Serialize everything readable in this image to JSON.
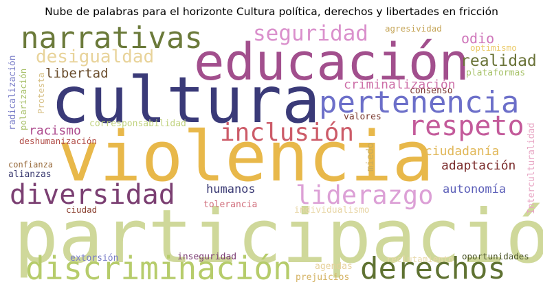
{
  "title": "Nube de palabras para el horizonte Cultura política, derechos y libertades en fricción",
  "words": [
    {
      "text": "participación",
      "color": "#cfd89a"
    },
    {
      "text": "violencia",
      "color": "#e8b84a"
    },
    {
      "text": "cultura",
      "color": "#3a3a78"
    },
    {
      "text": "educación",
      "color": "#a24f8d"
    },
    {
      "text": "narrativas",
      "color": "#6b7a3a"
    },
    {
      "text": "discriminación",
      "color": "#b6cc6b"
    },
    {
      "text": "derechos",
      "color": "#5f7232"
    },
    {
      "text": "pertenencia",
      "color": "#6c6fc9"
    },
    {
      "text": "respeto",
      "color": "#c35a9a"
    },
    {
      "text": "diversidad",
      "color": "#7b3f72"
    },
    {
      "text": "inclusión",
      "color": "#cc5b68"
    },
    {
      "text": "liderazgo",
      "color": "#dca0d6"
    },
    {
      "text": "seguridad",
      "color": "#da90cc"
    },
    {
      "text": "desigualdad",
      "color": "#e8d39a"
    },
    {
      "text": "realidad",
      "color": "#6a7338"
    },
    {
      "text": "libertad",
      "color": "#6a4d2c"
    },
    {
      "text": "criminalización",
      "color": "#cd6fa8"
    },
    {
      "text": "ciudadanía",
      "color": "#e1b85a"
    },
    {
      "text": "adaptación",
      "color": "#7b2c2c"
    },
    {
      "text": "autonomía",
      "color": "#5b5eb8"
    },
    {
      "text": "humanos",
      "color": "#3a3a74"
    },
    {
      "text": "racismo",
      "color": "#ad4b8e"
    },
    {
      "text": "odio",
      "color": "#cf76ba"
    },
    {
      "text": "agresividad",
      "color": "#c6a65a"
    },
    {
      "text": "optimismo",
      "color": "#ebca6a"
    },
    {
      "text": "plataformas",
      "color": "#a8c36b"
    },
    {
      "text": "consenso",
      "color": "#7a3630"
    },
    {
      "text": "valores",
      "color": "#7a3a30"
    },
    {
      "text": "corresponsabilidad",
      "color": "#c0d27e"
    },
    {
      "text": "deshumanización",
      "color": "#b04a45"
    },
    {
      "text": "confianza",
      "color": "#966838"
    },
    {
      "text": "alianzas",
      "color": "#3a3a70"
    },
    {
      "text": "ciudad",
      "color": "#8a4030"
    },
    {
      "text": "tolerancia",
      "color": "#d06c7a"
    },
    {
      "text": "individualismo",
      "color": "#e8d6a6"
    },
    {
      "text": "extorsión",
      "color": "#7a7ec8"
    },
    {
      "text": "inseguridad",
      "color": "#7a3a72"
    },
    {
      "text": "agendas",
      "color": "#e6d09a"
    },
    {
      "text": "prejuicios",
      "color": "#d4b262"
    },
    {
      "text": "reclutamiento",
      "color": "#e8d8a8"
    },
    {
      "text": "oportunidades",
      "color": "#4a5428"
    },
    {
      "text": "miedo",
      "color": "#c9ac5c"
    },
    {
      "text": "Interculturalidad",
      "color": "#e8a6c4"
    },
    {
      "text": "radicalización",
      "color": "#7a7ec8"
    },
    {
      "text": "polarización",
      "color": "#a8c06a"
    },
    {
      "text": "Protesta",
      "color": "#d8c28a"
    }
  ]
}
